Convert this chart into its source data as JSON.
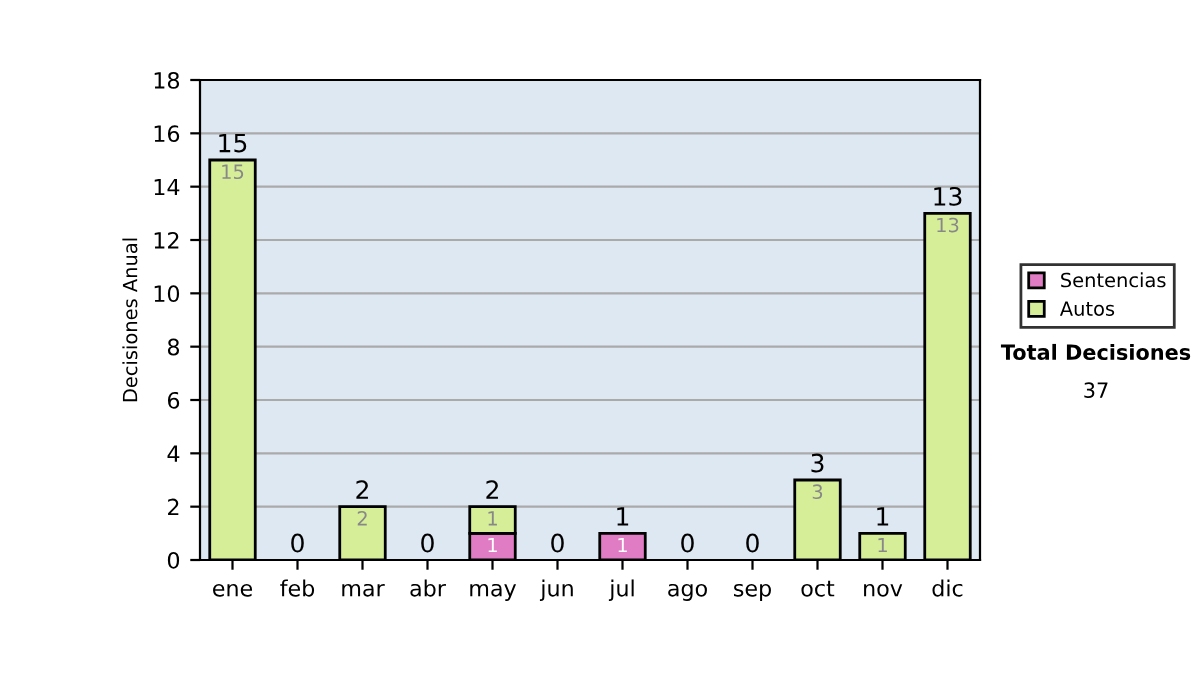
{
  "chart_data": {
    "type": "bar",
    "stacked": true,
    "ylabel": "Decisiones Anual",
    "categories": [
      "ene",
      "feb",
      "mar",
      "abr",
      "may",
      "jun",
      "jul",
      "ago",
      "sep",
      "oct",
      "nov",
      "dic"
    ],
    "series": [
      {
        "name": "Sentencias",
        "color": "#e07cc4",
        "values": [
          0,
          0,
          0,
          0,
          1,
          0,
          1,
          0,
          0,
          0,
          0,
          0
        ],
        "value_labels": [
          null,
          null,
          null,
          null,
          "1",
          null,
          "1",
          null,
          null,
          null,
          null,
          null
        ]
      },
      {
        "name": "Autos",
        "color": "#d6ee98",
        "values": [
          15,
          0,
          2,
          0,
          1,
          0,
          0,
          0,
          0,
          3,
          1,
          13
        ],
        "value_labels": [
          "15",
          null,
          "2",
          null,
          "1",
          null,
          null,
          null,
          null,
          "3",
          "1",
          "13"
        ]
      }
    ],
    "totals": [
      "15",
      "0",
      "2",
      "0",
      "2",
      "0",
      "1",
      "0",
      "0",
      "3",
      "1",
      "13"
    ],
    "ylim": [
      0,
      18
    ],
    "yticks": [
      0,
      2,
      4,
      6,
      8,
      10,
      12,
      14,
      16,
      18
    ],
    "grid": "y",
    "legend": "right",
    "annotations": [
      "Total Decisiones",
      "37"
    ]
  }
}
